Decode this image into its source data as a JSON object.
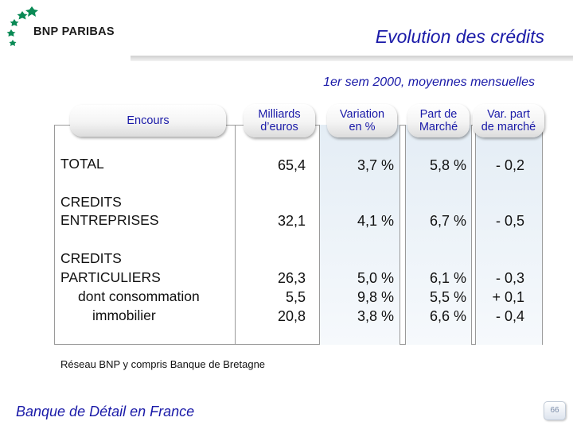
{
  "brand": {
    "name": "BNP PARIBAS"
  },
  "header": {
    "title": "Evolution des crédits",
    "subtitle": "1er sem 2000, moyennes mensuelles"
  },
  "table": {
    "headers": {
      "encours": "Encours",
      "milliards": [
        "Milliards",
        "d’euros"
      ],
      "variation": [
        "Variation",
        "en %"
      ],
      "part": [
        "Part de",
        "Marché"
      ],
      "varpart": [
        "Var. part",
        "de marché"
      ]
    },
    "rows": {
      "total": {
        "label": "TOTAL",
        "milliards": "65,4",
        "variation": "3,7 %",
        "part": "5,8 %",
        "varpart": "- 0,2"
      },
      "entreprises": {
        "label": [
          "CREDITS",
          "ENTREPRISES"
        ],
        "milliards": "32,1",
        "variation": "4,1 %",
        "part": "6,7 %",
        "varpart": "- 0,5"
      },
      "particuliers": {
        "label": [
          "CREDITS",
          "PARTICULIERS",
          "dont consommation",
          "immobilier"
        ],
        "milliards": [
          "26,3",
          "5,5",
          "20,8"
        ],
        "variation": [
          "5,0 %",
          "9,8 %",
          "3,8 %"
        ],
        "part": [
          "6,1 %",
          "5,5 %",
          "6,6 %"
        ],
        "varpart": [
          "- 0,3",
          "+ 0,1",
          "- 0,4"
        ]
      }
    }
  },
  "note": "Réseau BNP y compris Banque de Bretagne",
  "footer": {
    "label": "Banque de Détail en France",
    "page_number": "66"
  },
  "colors": {
    "title_blue": "#1a1aa8",
    "logo_green": "#0a8a55",
    "shade": "#e4edf5"
  }
}
